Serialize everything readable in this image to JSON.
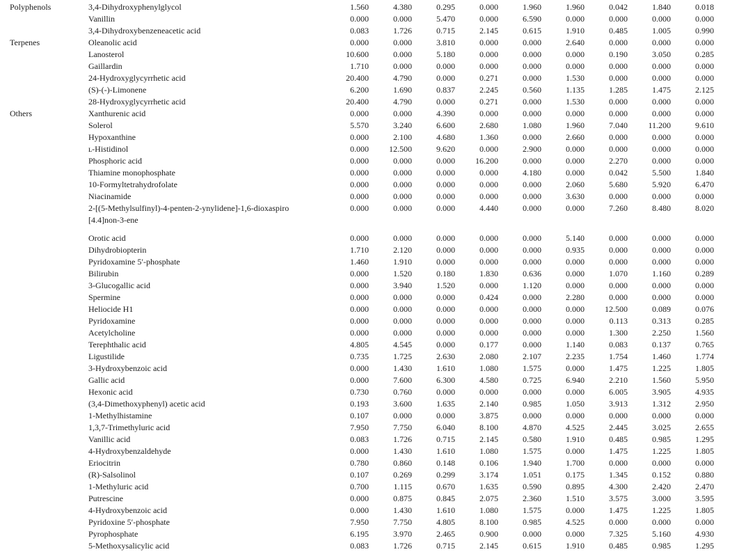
{
  "page": {
    "background": "#ffffff",
    "text_color": "#1b1b1b"
  },
  "table": {
    "value_columns": 9,
    "groups": [
      {
        "category": "Polyphenols",
        "rows": [
          {
            "name": "3,4-Dihydroxyphenylglycol",
            "values": [
              "1.560",
              "4.380",
              "0.295",
              "0.000",
              "1.960",
              "1.960",
              "0.042",
              "1.840",
              "0.018"
            ]
          },
          {
            "name": "Vanillin",
            "values": [
              "0.000",
              "0.000",
              "5.470",
              "0.000",
              "6.590",
              "0.000",
              "0.000",
              "0.000",
              "0.000"
            ]
          },
          {
            "name": "3,4-Dihydroxybenzeneacetic acid",
            "values": [
              "0.083",
              "1.726",
              "0.715",
              "2.145",
              "0.615",
              "1.910",
              "0.485",
              "1.005",
              "0.990"
            ]
          }
        ]
      },
      {
        "category": "Terpenes",
        "rows": [
          {
            "name": "Oleanolic acid",
            "values": [
              "0.000",
              "0.000",
              "3.810",
              "0.000",
              "0.000",
              "2.640",
              "0.000",
              "0.000",
              "0.000"
            ]
          },
          {
            "name": "Lanosterol",
            "values": [
              "10.600",
              "0.000",
              "5.180",
              "0.000",
              "0.000",
              "0.000",
              "0.190",
              "3.050",
              "0.285"
            ]
          },
          {
            "name": "Gaillardin",
            "values": [
              "1.710",
              "0.000",
              "0.000",
              "0.000",
              "0.000",
              "0.000",
              "0.000",
              "0.000",
              "0.000"
            ]
          },
          {
            "name": "24-Hydroxyglycyrrhetic acid",
            "values": [
              "20.400",
              "4.790",
              "0.000",
              "0.271",
              "0.000",
              "1.530",
              "0.000",
              "0.000",
              "0.000"
            ]
          },
          {
            "name": "(S)-(-)-Limonene",
            "values": [
              "6.200",
              "1.690",
              "0.837",
              "2.245",
              "0.560",
              "1.135",
              "1.285",
              "1.475",
              "2.125"
            ]
          },
          {
            "name": "28-Hydroxyglycyrrhetic acid",
            "values": [
              "20.400",
              "4.790",
              "0.000",
              "0.271",
              "0.000",
              "1.530",
              "0.000",
              "0.000",
              "0.000"
            ]
          }
        ]
      },
      {
        "category": "Others",
        "rows": [
          {
            "name": "Xanthurenic acid",
            "values": [
              "0.000",
              "0.000",
              "4.390",
              "0.000",
              "0.000",
              "0.000",
              "0.000",
              "0.000",
              "0.000"
            ]
          },
          {
            "name": "Solerol",
            "values": [
              "5.570",
              "3.240",
              "6.600",
              "2.680",
              "1.080",
              "1.960",
              "7.040",
              "11.200",
              "9.610"
            ]
          },
          {
            "name": "Hypoxanthine",
            "values": [
              "0.000",
              "2.100",
              "4.680",
              "1.360",
              "0.000",
              "2.660",
              "0.000",
              "0.000",
              "0.000"
            ]
          },
          {
            "name": "ʟ-Histidinol",
            "values": [
              "0.000",
              "12.500",
              "9.620",
              "0.000",
              "2.900",
              "0.000",
              "0.000",
              "0.000",
              "0.000"
            ]
          },
          {
            "name": "Phosphoric acid",
            "values": [
              "0.000",
              "0.000",
              "0.000",
              "16.200",
              "0.000",
              "0.000",
              "2.270",
              "0.000",
              "0.000"
            ]
          },
          {
            "name": "Thiamine monophosphate",
            "values": [
              "0.000",
              "0.000",
              "0.000",
              "0.000",
              "4.180",
              "0.000",
              "0.042",
              "5.500",
              "1.840"
            ]
          },
          {
            "name": "10-Formyltetrahydrofolate",
            "values": [
              "0.000",
              "0.000",
              "0.000",
              "0.000",
              "0.000",
              "2.060",
              "5.680",
              "5.920",
              "6.470"
            ]
          },
          {
            "name": "Niacinamide",
            "values": [
              "0.000",
              "0.000",
              "0.000",
              "0.000",
              "0.000",
              "3.630",
              "0.000",
              "0.000",
              "0.000"
            ]
          },
          {
            "name": "2-[(5-Methylsulfinyl)-4-penten-2-ynylidene]-1,6-dioxaspiro[4.4]non-3-ene",
            "name_lines": [
              "2-[(5-Methylsulfinyl)-4-penten-2-ynylidene]-1,6-dioxaspiro",
              "[4.4]non-3-ene"
            ],
            "values": [
              "0.000",
              "0.000",
              "0.000",
              "4.440",
              "0.000",
              "0.000",
              "7.260",
              "8.480",
              "8.020"
            ],
            "spacer_after": true
          },
          {
            "name": "Orotic acid",
            "values": [
              "0.000",
              "0.000",
              "0.000",
              "0.000",
              "0.000",
              "5.140",
              "0.000",
              "0.000",
              "0.000"
            ]
          },
          {
            "name": "Dihydrobiopterin",
            "values": [
              "1.710",
              "2.120",
              "0.000",
              "0.000",
              "0.000",
              "0.935",
              "0.000",
              "0.000",
              "0.000"
            ]
          },
          {
            "name": "Pyridoxamine 5′-phosphate",
            "values": [
              "1.460",
              "1.910",
              "0.000",
              "0.000",
              "0.000",
              "0.000",
              "0.000",
              "0.000",
              "0.000"
            ]
          },
          {
            "name": "Bilirubin",
            "values": [
              "0.000",
              "1.520",
              "0.180",
              "1.830",
              "0.636",
              "0.000",
              "1.070",
              "1.160",
              "0.289"
            ]
          },
          {
            "name": "3-Glucogallic acid",
            "values": [
              "0.000",
              "3.940",
              "1.520",
              "0.000",
              "1.120",
              "0.000",
              "0.000",
              "0.000",
              "0.000"
            ]
          },
          {
            "name": "Spermine",
            "values": [
              "0.000",
              "0.000",
              "0.000",
              "0.424",
              "0.000",
              "2.280",
              "0.000",
              "0.000",
              "0.000"
            ]
          },
          {
            "name": "Heliocide H1",
            "values": [
              "0.000",
              "0.000",
              "0.000",
              "0.000",
              "0.000",
              "0.000",
              "12.500",
              "0.089",
              "0.076"
            ]
          },
          {
            "name": "Pyridoxamine",
            "values": [
              "0.000",
              "0.000",
              "0.000",
              "0.000",
              "0.000",
              "0.000",
              "0.113",
              "0.313",
              "0.285"
            ]
          },
          {
            "name": "Acetylcholine",
            "values": [
              "0.000",
              "0.000",
              "0.000",
              "0.000",
              "0.000",
              "0.000",
              "1.300",
              "2.250",
              "1.560"
            ]
          },
          {
            "name": "Terephthalic acid",
            "values": [
              "4.805",
              "4.545",
              "0.000",
              "0.177",
              "0.000",
              "1.140",
              "0.083",
              "0.137",
              "0.765"
            ]
          },
          {
            "name": "Ligustilide",
            "values": [
              "0.735",
              "1.725",
              "2.630",
              "2.080",
              "2.107",
              "2.235",
              "1.754",
              "1.460",
              "1.774"
            ]
          },
          {
            "name": "3-Hydroxybenzoic acid",
            "values": [
              "0.000",
              "1.430",
              "1.610",
              "1.080",
              "1.575",
              "0.000",
              "1.475",
              "1.225",
              "1.805"
            ]
          },
          {
            "name": "Gallic acid",
            "values": [
              "0.000",
              "7.600",
              "6.300",
              "4.580",
              "0.725",
              "6.940",
              "2.210",
              "1.560",
              "5.950"
            ]
          },
          {
            "name": "Hexonic acid",
            "values": [
              "0.730",
              "0.760",
              "0.000",
              "0.000",
              "0.000",
              "0.000",
              "6.005",
              "3.905",
              "4.935"
            ]
          },
          {
            "name": "(3,4-Dimethoxyphenyl) acetic acid",
            "values": [
              "0.193",
              "3.600",
              "1.635",
              "2.140",
              "0.985",
              "1.050",
              "3.913",
              "1.312",
              "2.950"
            ]
          },
          {
            "name": "1-Methylhistamine",
            "values": [
              "0.107",
              "0.000",
              "0.000",
              "3.875",
              "0.000",
              "0.000",
              "0.000",
              "0.000",
              "0.000"
            ]
          },
          {
            "name": "1,3,7-Trimethyluric acid",
            "values": [
              "7.950",
              "7.750",
              "6.040",
              "8.100",
              "4.870",
              "4.525",
              "2.445",
              "3.025",
              "2.655"
            ]
          },
          {
            "name": "Vanillic acid",
            "values": [
              "0.083",
              "1.726",
              "0.715",
              "2.145",
              "0.580",
              "1.910",
              "0.485",
              "0.985",
              "1.295"
            ]
          },
          {
            "name": "4-Hydroxybenzaldehyde",
            "values": [
              "0.000",
              "1.430",
              "1.610",
              "1.080",
              "1.575",
              "0.000",
              "1.475",
              "1.225",
              "1.805"
            ]
          },
          {
            "name": "Eriocitrin",
            "values": [
              "0.780",
              "0.860",
              "0.148",
              "0.106",
              "1.940",
              "1.700",
              "0.000",
              "0.000",
              "0.000"
            ]
          },
          {
            "name": "(R)-Salsolinol",
            "values": [
              "0.107",
              "0.269",
              "0.299",
              "3.174",
              "1.051",
              "0.175",
              "1.345",
              "0.152",
              "0.880"
            ]
          },
          {
            "name": "1-Methyluric acid",
            "values": [
              "0.700",
              "1.115",
              "0.670",
              "1.635",
              "0.590",
              "0.895",
              "4.300",
              "2.420",
              "2.470"
            ]
          },
          {
            "name": "Putrescine",
            "values": [
              "0.000",
              "0.875",
              "0.845",
              "2.075",
              "2.360",
              "1.510",
              "3.575",
              "3.000",
              "3.595"
            ]
          },
          {
            "name": "4-Hydroxybenzoic acid",
            "values": [
              "0.000",
              "1.430",
              "1.610",
              "1.080",
              "1.575",
              "0.000",
              "1.475",
              "1.225",
              "1.805"
            ]
          },
          {
            "name": "Pyridoxine 5′-phosphate",
            "values": [
              "7.950",
              "7.750",
              "4.805",
              "8.100",
              "0.985",
              "4.525",
              "0.000",
              "0.000",
              "0.000"
            ]
          },
          {
            "name": "Pyrophosphate",
            "values": [
              "6.195",
              "3.970",
              "2.465",
              "0.900",
              "0.000",
              "0.000",
              "7.325",
              "5.160",
              "4.930"
            ]
          },
          {
            "name": "5-Methoxysalicylic acid",
            "values": [
              "0.083",
              "1.726",
              "0.715",
              "2.145",
              "0.615",
              "1.910",
              "0.485",
              "0.985",
              "1.295"
            ]
          }
        ]
      }
    ]
  }
}
